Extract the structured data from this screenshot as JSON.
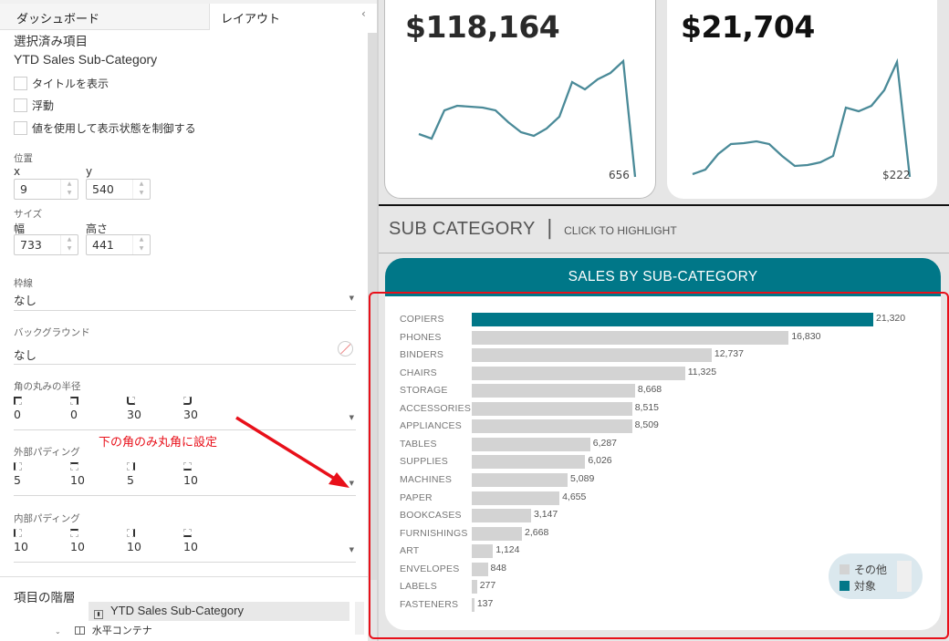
{
  "left_panel": {
    "tabs": [
      {
        "label": "ダッシュボード",
        "active": false
      },
      {
        "label": "レイアウト",
        "active": true
      }
    ],
    "collapse_icon": "chevron-left-icon",
    "selected_item": {
      "heading": "選択済み項目",
      "name": "YTD Sales Sub-Category"
    },
    "checkboxes": [
      {
        "label": "タイトルを表示",
        "checked": false
      },
      {
        "label": "浮動",
        "checked": false
      },
      {
        "label": "値を使用して表示状態を制御する",
        "checked": false
      }
    ],
    "position": {
      "heading": "位置",
      "x_label": "x",
      "x_value": "9",
      "y_label": "y",
      "y_value": "540"
    },
    "size": {
      "heading": "サイズ",
      "width_label": "幅",
      "width_value": "733",
      "height_label": "高さ",
      "height_value": "441"
    },
    "border": {
      "heading": "枠線",
      "value": "なし"
    },
    "background": {
      "heading": "バックグラウンド",
      "value": "なし",
      "icon": "no-color-icon"
    },
    "corner_radius": {
      "heading": "角の丸みの半径",
      "values": [
        "0",
        "0",
        "30",
        "30"
      ],
      "icons": [
        "top-left-corner-icon",
        "top-right-corner-icon",
        "bottom-left-corner-icon",
        "bottom-right-corner-icon"
      ]
    },
    "annotation": "下の角のみ丸角に設定",
    "outer_padding": {
      "heading": "外部パディング",
      "values": [
        "5",
        "10",
        "5",
        "10"
      ],
      "icons": [
        "left-padding-icon",
        "top-padding-icon",
        "right-padding-icon",
        "bottom-padding-icon"
      ]
    },
    "inner_padding": {
      "heading": "内部パディング",
      "values": [
        "10",
        "10",
        "10",
        "10"
      ],
      "icons": [
        "left-padding-icon",
        "top-padding-icon",
        "right-padding-icon",
        "bottom-padding-icon"
      ]
    },
    "hierarchy": {
      "heading": "項目の階層",
      "selected": "YTD Sales Sub-Category",
      "parent": "水平コンテナ"
    }
  },
  "dashboard": {
    "kpi_cards": [
      {
        "value": "$118,164",
        "end_label": "656"
      },
      {
        "value": "$21,704",
        "end_label": "$222"
      }
    ],
    "section_title": "SUB CATEGORY",
    "section_separator": "|",
    "section_hint": "CLICK TO HIGHLIGHT",
    "chart_header": "SALES BY SUB-CATEGORY",
    "legend": [
      {
        "label": "その他",
        "color": "#d3d3d3"
      },
      {
        "label": "対象",
        "color": "#007788"
      }
    ]
  },
  "colors": {
    "accent": "#007788",
    "bar_default": "#d3d3d3",
    "annotation_red": "#e8101a",
    "sparkline": "#4a8a98"
  },
  "chart_data": [
    {
      "type": "bar",
      "title": "SALES BY SUB-CATEGORY",
      "orientation": "horizontal",
      "categories": [
        "COPIERS",
        "PHONES",
        "BINDERS",
        "CHAIRS",
        "STORAGE",
        "ACCESSORIES",
        "APPLIANCES",
        "TABLES",
        "SUPPLIES",
        "MACHINES",
        "PAPER",
        "BOOKCASES",
        "FURNISHINGS",
        "ART",
        "ENVELOPES",
        "LABELS",
        "FASTENERS"
      ],
      "values": [
        21320,
        16830,
        12737,
        11325,
        8668,
        8515,
        8509,
        6287,
        6026,
        5089,
        4655,
        3147,
        2668,
        1124,
        848,
        277,
        137
      ],
      "labels": [
        "21,320",
        "16,830",
        "12,737",
        "11,325",
        "8,668",
        "8,515",
        "8,509",
        "6,287",
        "6,026",
        "5,089",
        "4,655",
        "3,147",
        "2,668",
        "1,124",
        "848",
        "277",
        "137"
      ],
      "highlighted": "COPIERS",
      "legend": [
        "その他",
        "対象"
      ]
    },
    {
      "type": "line",
      "title": "$118,164",
      "values": [
        42,
        38,
        60,
        64,
        63,
        62,
        59,
        48,
        40,
        37,
        45,
        56,
        85,
        79,
        88,
        95,
        104,
        0
      ],
      "end_label": "656"
    },
    {
      "type": "line",
      "title": "$21,704",
      "values": [
        3,
        7,
        20,
        28,
        28,
        30,
        27,
        14,
        5,
        6,
        8,
        14,
        70,
        67,
        72,
        87,
        110,
        2
      ],
      "end_label": "$222"
    }
  ]
}
